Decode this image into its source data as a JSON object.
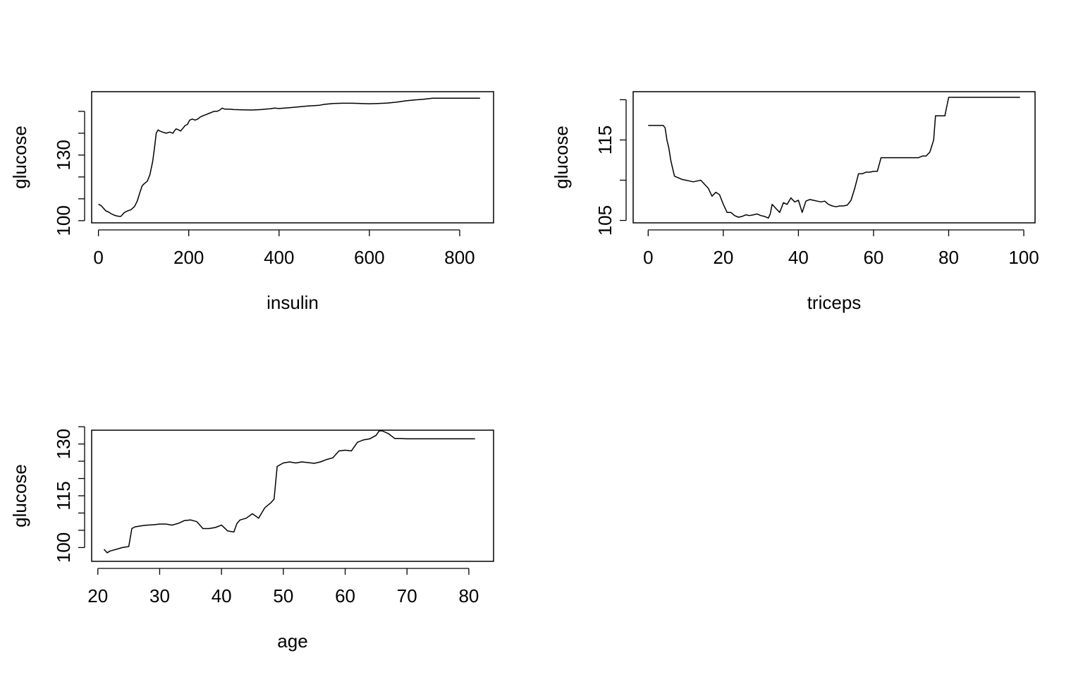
{
  "chart_data": [
    {
      "type": "line",
      "xlabel": "insulin",
      "ylabel": "glucose",
      "xlim": [
        -15,
        875
      ],
      "ylim": [
        99,
        159
      ],
      "xticks": [
        0,
        200,
        400,
        600,
        800
      ],
      "yticks": [
        100,
        110,
        120,
        130,
        140,
        150
      ],
      "ytick_labels": [
        "100",
        "",
        "",
        "130",
        "",
        ""
      ],
      "grid": false,
      "series": [
        {
          "x": [
            0,
            5,
            8,
            12,
            16,
            22,
            28,
            35,
            40,
            45,
            50,
            56,
            60,
            65,
            72,
            80,
            86,
            92,
            97,
            102,
            108,
            114,
            120,
            124,
            128,
            132,
            136,
            142,
            150,
            158,
            165,
            168,
            172,
            178,
            182,
            188,
            192,
            197,
            202,
            208,
            214,
            220,
            226,
            232,
            238,
            244,
            250,
            256,
            262,
            268,
            274,
            280,
            290,
            300,
            320,
            340,
            360,
            380,
            390,
            400,
            420,
            440,
            460,
            490,
            500,
            520,
            540,
            560,
            580,
            600,
            620,
            640,
            660,
            680,
            700,
            720,
            740,
            760,
            780,
            800,
            820,
            845
          ],
          "y": [
            107.5,
            107,
            106.5,
            105.5,
            104.5,
            104,
            103.2,
            102.5,
            102.2,
            102,
            102,
            103.5,
            104,
            104.5,
            105,
            106.5,
            109,
            113,
            116,
            117,
            118,
            121,
            127,
            133,
            140,
            141.5,
            141,
            140.5,
            140,
            140.5,
            140,
            141,
            142,
            141.5,
            141,
            142.5,
            143.5,
            144,
            146,
            146.5,
            146,
            146.5,
            147.5,
            148,
            148.5,
            149,
            149.5,
            150,
            150,
            150.5,
            151.5,
            151,
            151,
            150.8,
            150.7,
            150.6,
            150.8,
            151.2,
            151.5,
            151.3,
            151.6,
            152,
            152.4,
            152.8,
            153.2,
            153.6,
            153.7,
            153.7,
            153.6,
            153.5,
            153.6,
            153.8,
            154.2,
            154.8,
            155.2,
            155.5,
            156,
            156,
            156,
            156,
            156,
            156
          ]
        }
      ]
    },
    {
      "type": "line",
      "xlabel": "triceps",
      "ylabel": "glucose",
      "xlim": [
        -4,
        103
      ],
      "ylim": [
        104.7,
        121
      ],
      "xticks": [
        0,
        20,
        40,
        60,
        80,
        100
      ],
      "yticks": [
        105,
        110,
        115,
        120
      ],
      "ytick_labels": [
        "105",
        "",
        "115",
        ""
      ],
      "grid": false,
      "series": [
        {
          "x": [
            0,
            2,
            4,
            4.5,
            5,
            5.5,
            6,
            6.5,
            7,
            8,
            9,
            10,
            11,
            12,
            13,
            14,
            15,
            16,
            16.5,
            17,
            18,
            19,
            20,
            21,
            22,
            23,
            24,
            25,
            26,
            27,
            28,
            29,
            30,
            31,
            32,
            32.5,
            33,
            34,
            35,
            36,
            37,
            38,
            39,
            40,
            41,
            42,
            43,
            44,
            45,
            46,
            47,
            48,
            49,
            50,
            51,
            52,
            53,
            54,
            55,
            56,
            57,
            58,
            59,
            60,
            61,
            62,
            63,
            64,
            65,
            66,
            67,
            68,
            69,
            70,
            71,
            72,
            73,
            74,
            75,
            76,
            76.5,
            77,
            78,
            79,
            80,
            85,
            90,
            95,
            99
          ],
          "y": [
            116.8,
            116.8,
            116.8,
            116.5,
            115,
            114,
            112.5,
            111.5,
            110.5,
            110.3,
            110.1,
            110,
            109.9,
            109.8,
            109.9,
            110,
            109.5,
            109,
            108.5,
            108,
            108.5,
            108.2,
            107,
            106,
            106,
            105.6,
            105.4,
            105.5,
            105.7,
            105.6,
            105.7,
            105.8,
            105.6,
            105.5,
            105.3,
            105.8,
            107,
            106.5,
            106,
            107.2,
            107,
            107.8,
            107.3,
            107.5,
            106,
            107.4,
            107.6,
            107.5,
            107.4,
            107.3,
            107.4,
            107,
            106.8,
            106.7,
            106.8,
            106.8,
            106.9,
            107.5,
            109,
            110.8,
            110.8,
            111,
            111,
            111.1,
            111.1,
            112.8,
            112.8,
            112.8,
            112.8,
            112.8,
            112.8,
            112.8,
            112.8,
            112.8,
            112.8,
            112.8,
            113,
            113,
            113.5,
            115,
            118,
            118,
            118,
            118,
            120.3,
            120.3,
            120.3,
            120.3,
            120.3
          ]
        }
      ]
    },
    {
      "type": "line",
      "xlabel": "age",
      "ylabel": "glucose",
      "xlim": [
        19,
        84
      ],
      "ylim": [
        96,
        134
      ],
      "xticks": [
        20,
        30,
        40,
        50,
        60,
        70,
        80
      ],
      "yticks": [
        100,
        105,
        110,
        115,
        120,
        125,
        130,
        135
      ],
      "ytick_labels": [
        "100",
        "",
        "",
        "115",
        "",
        "",
        "130",
        ""
      ],
      "grid": false,
      "series": [
        {
          "x": [
            21,
            21.5,
            22,
            23,
            24,
            25,
            25.5,
            26,
            27,
            28,
            29,
            30,
            31,
            32,
            33,
            34,
            35,
            36,
            37,
            38,
            39,
            40,
            41,
            42,
            42.5,
            43,
            44,
            45,
            46,
            47,
            48,
            48.5,
            49,
            50,
            51,
            52,
            53,
            54,
            55,
            56,
            57,
            58,
            59,
            60,
            61,
            62,
            63,
            64,
            65,
            65.5,
            66,
            67,
            68,
            69,
            70,
            75,
            81
          ],
          "y": [
            99.5,
            98.5,
            99,
            99.5,
            100,
            100.3,
            105.5,
            106,
            106.3,
            106.5,
            106.6,
            106.8,
            106.8,
            106.5,
            107,
            107.8,
            108,
            107.5,
            105.5,
            105.5,
            105.8,
            106.5,
            104.8,
            104.5,
            107,
            108,
            108.5,
            109.8,
            108.5,
            111.5,
            113,
            114,
            123.5,
            124.5,
            124.8,
            124.5,
            124.8,
            124.6,
            124.4,
            124.8,
            125.5,
            126,
            128,
            128.2,
            128,
            130.5,
            131.2,
            131.5,
            132.5,
            133.8,
            133.8,
            133,
            131.6,
            131.6,
            131.5,
            131.5,
            131.5
          ]
        }
      ]
    }
  ]
}
